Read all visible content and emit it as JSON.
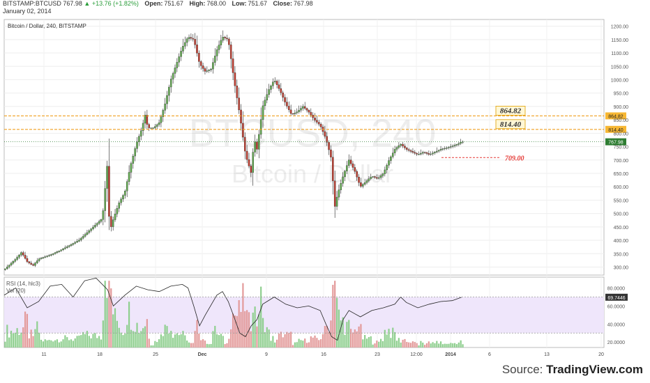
{
  "header": {
    "symbol": "BITSTAMP:BTCUSD",
    "last": "767.98",
    "change": "▲ +13.76 (+1.82%)",
    "open_label": "Open:",
    "open": "751.67",
    "high_label": "High:",
    "high": "768.00",
    "low_label": "Low:",
    "low": "751.67",
    "close_label": "Close:",
    "close": "767.98",
    "date": "January 02, 2014"
  },
  "chart_title": "Bitcoin / Dollar, 240, BITSTAMP",
  "watermark": {
    "symbol": "BTCUSD, 240",
    "name": "Bitcoin / Dollar"
  },
  "source": {
    "prefix": "Source: ",
    "brand": "TradingView.com"
  },
  "colors": {
    "up": "#5fa94d",
    "down": "#c0392b",
    "hline": "#f0a020",
    "rsi_fill": "#efe6fb",
    "vol_up": "#8fcf8f",
    "vol_down": "#e39a9a",
    "last_badge": "#2e7d32",
    "dashed_red": "#e53935"
  },
  "chart_data": [
    {
      "type": "candlestick",
      "title": "Bitcoin / Dollar, 240, BITSTAMP",
      "x_tick_labels": [
        "11",
        "18",
        "25",
        "Dec",
        "9",
        "16",
        "23",
        "12:00",
        "2014",
        "6",
        "13",
        "20"
      ],
      "y_ticks": [
        300,
        350,
        400,
        450,
        500,
        550,
        600,
        650,
        700,
        750,
        800,
        850,
        900,
        950,
        1000,
        1050,
        1100,
        1150,
        1200
      ],
      "y_tick_labels": [
        "300.00",
        "350.00",
        "400.00",
        "450.00",
        "500.00",
        "550.00",
        "600.00",
        "650.00",
        "700.00",
        "750.00",
        "800.00",
        "850.00",
        "900.00",
        "950.00",
        "1000.00",
        "1050.00",
        "1100.00",
        "1150.00",
        "1200.00"
      ],
      "ylim": [
        270,
        1225
      ],
      "price_path": [
        [
          0,
          290
        ],
        [
          2,
          330
        ],
        [
          3,
          355
        ],
        [
          4,
          320
        ],
        [
          5,
          305
        ],
        [
          6,
          330
        ],
        [
          8,
          345
        ],
        [
          10,
          365
        ],
        [
          13,
          400
        ],
        [
          15,
          440
        ],
        [
          16,
          460
        ],
        [
          17,
          480
        ],
        [
          17.5,
          550
        ],
        [
          17.8,
          750
        ],
        [
          18,
          620
        ],
        [
          18.3,
          470
        ],
        [
          18.6,
          450
        ],
        [
          19,
          480
        ],
        [
          20,
          540
        ],
        [
          21,
          580
        ],
        [
          22,
          680
        ],
        [
          23,
          760
        ],
        [
          24,
          820
        ],
        [
          24.5,
          870
        ],
        [
          25,
          820
        ],
        [
          26,
          820
        ],
        [
          27,
          840
        ],
        [
          28,
          910
        ],
        [
          29,
          1000
        ],
        [
          30,
          1060
        ],
        [
          31,
          1120
        ],
        [
          32,
          1160
        ],
        [
          33,
          1150
        ],
        [
          34,
          1060
        ],
        [
          35,
          1030
        ],
        [
          36,
          1040
        ],
        [
          37,
          1110
        ],
        [
          38,
          1160
        ],
        [
          39,
          1150
        ],
        [
          40,
          1000
        ],
        [
          41,
          870
        ],
        [
          42,
          720
        ],
        [
          43,
          650
        ],
        [
          43.5,
          780
        ],
        [
          44,
          740
        ],
        [
          45,
          900
        ],
        [
          46,
          960
        ],
        [
          47,
          1000
        ],
        [
          48,
          960
        ],
        [
          49,
          910
        ],
        [
          50,
          870
        ],
        [
          51,
          880
        ],
        [
          52,
          900
        ],
        [
          53,
          880
        ],
        [
          54,
          850
        ],
        [
          55,
          830
        ],
        [
          56,
          780
        ],
        [
          57,
          700
        ],
        [
          57.5,
          520
        ],
        [
          58,
          570
        ],
        [
          59,
          640
        ],
        [
          60,
          700
        ],
        [
          61,
          660
        ],
        [
          62,
          600
        ],
        [
          63,
          620
        ],
        [
          64,
          640
        ],
        [
          65,
          630
        ],
        [
          66,
          650
        ],
        [
          67,
          700
        ],
        [
          68,
          740
        ],
        [
          69,
          760
        ],
        [
          70,
          740
        ],
        [
          71,
          730
        ],
        [
          72,
          720
        ],
        [
          73,
          730
        ],
        [
          74,
          720
        ],
        [
          75,
          730
        ],
        [
          76,
          740
        ],
        [
          77,
          745
        ],
        [
          78,
          752
        ],
        [
          79,
          760
        ],
        [
          79.6,
          768
        ]
      ],
      "horizontal_lines": [
        {
          "value": 864.82,
          "label": "864.82"
        },
        {
          "value": 814.4,
          "label": "814.40"
        }
      ],
      "last_price": {
        "value": 767.98,
        "label": "767.98"
      },
      "support_line": {
        "value": 709.0,
        "label": "709.00"
      }
    },
    {
      "type": "line",
      "name": "RSI (14, hlc3)",
      "secondary": "Vol (20)",
      "y_tick_labels": [
        "20.0000",
        "40.0000",
        "60.0000",
        "80.0000"
      ],
      "y_ticks": [
        20,
        40,
        60,
        80
      ],
      "ylim": [
        14,
        92
      ],
      "band": [
        30,
        70
      ],
      "last": {
        "value": 69.7446,
        "label": "69.7446"
      },
      "rsi_path": [
        [
          0,
          72
        ],
        [
          2,
          80
        ],
        [
          4,
          58
        ],
        [
          6,
          65
        ],
        [
          8,
          82
        ],
        [
          10,
          84
        ],
        [
          12,
          70
        ],
        [
          14,
          88
        ],
        [
          16,
          91
        ],
        [
          18,
          78
        ],
        [
          19,
          60
        ],
        [
          21,
          72
        ],
        [
          23,
          82
        ],
        [
          25,
          78
        ],
        [
          27,
          76
        ],
        [
          29,
          82
        ],
        [
          31,
          84
        ],
        [
          32,
          80
        ],
        [
          33,
          60
        ],
        [
          34,
          38
        ],
        [
          35,
          50
        ],
        [
          37,
          72
        ],
        [
          38,
          76
        ],
        [
          39,
          65
        ],
        [
          40,
          48
        ],
        [
          41,
          30
        ],
        [
          42,
          26
        ],
        [
          43,
          38
        ],
        [
          44,
          45
        ],
        [
          45,
          62
        ],
        [
          47,
          70
        ],
        [
          49,
          62
        ],
        [
          51,
          58
        ],
        [
          53,
          60
        ],
        [
          55,
          55
        ],
        [
          56,
          40
        ],
        [
          57,
          26
        ],
        [
          58,
          22
        ],
        [
          59,
          45
        ],
        [
          60,
          55
        ],
        [
          62,
          48
        ],
        [
          64,
          55
        ],
        [
          66,
          58
        ],
        [
          68,
          62
        ],
        [
          69,
          70
        ],
        [
          70,
          64
        ],
        [
          72,
          58
        ],
        [
          74,
          62
        ],
        [
          76,
          65
        ],
        [
          78,
          66
        ],
        [
          79.6,
          69.7
        ]
      ]
    }
  ]
}
